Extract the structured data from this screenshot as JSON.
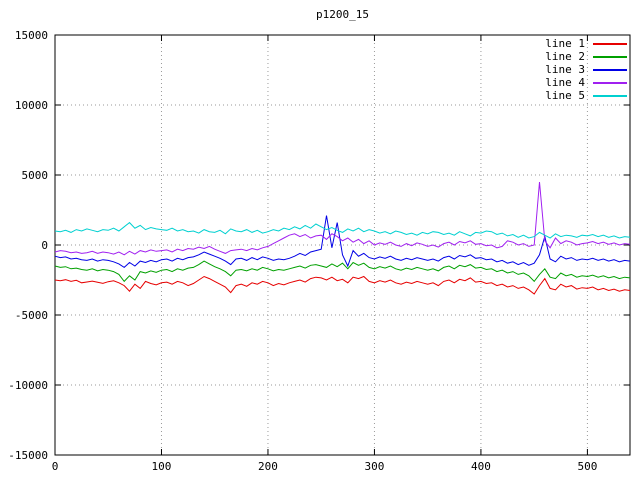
{
  "chart_data": {
    "type": "line",
    "title": "p1200_15",
    "xlabel": "",
    "ylabel": "",
    "grid": true,
    "legend_position": "top-right",
    "xlim": [
      0,
      540
    ],
    "ylim": [
      -15000,
      15000
    ],
    "xticks": [
      {
        "v": 0,
        "label": "0"
      },
      {
        "v": 100,
        "label": "100"
      },
      {
        "v": 200,
        "label": "200"
      },
      {
        "v": 300,
        "label": "300"
      },
      {
        "v": 400,
        "label": "400"
      },
      {
        "v": 500,
        "label": "500"
      }
    ],
    "yticks": [
      {
        "v": -15000,
        "label": "-15000"
      },
      {
        "v": -10000,
        "label": "-10000"
      },
      {
        "v": -5000,
        "label": "-5000"
      },
      {
        "v": 0,
        "label": "0"
      },
      {
        "v": 5000,
        "label": "5000"
      },
      {
        "v": 10000,
        "label": "10000"
      },
      {
        "v": 15000,
        "label": "15000"
      }
    ],
    "x": {
      "start": 0,
      "step": 5,
      "count": 109
    },
    "series": [
      {
        "name": "line 1",
        "color": "#e60000",
        "values": [
          -2500,
          -2550,
          -2480,
          -2600,
          -2520,
          -2700,
          -2640,
          -2580,
          -2660,
          -2740,
          -2620,
          -2560,
          -2700,
          -2900,
          -3300,
          -2800,
          -3100,
          -2600,
          -2750,
          -2850,
          -2700,
          -2650,
          -2800,
          -2600,
          -2700,
          -2900,
          -2750,
          -2500,
          -2250,
          -2400,
          -2600,
          -2800,
          -3000,
          -3400,
          -2900,
          -2800,
          -2950,
          -2700,
          -2800,
          -2600,
          -2700,
          -2900,
          -2750,
          -2850,
          -2700,
          -2600,
          -2500,
          -2650,
          -2400,
          -2300,
          -2350,
          -2500,
          -2300,
          -2550,
          -2450,
          -2700,
          -2300,
          -2400,
          -2250,
          -2600,
          -2700,
          -2550,
          -2650,
          -2500,
          -2700,
          -2800,
          -2650,
          -2750,
          -2600,
          -2700,
          -2800,
          -2700,
          -2900,
          -2600,
          -2500,
          -2700,
          -2450,
          -2550,
          -2350,
          -2650,
          -2600,
          -2750,
          -2700,
          -2900,
          -2800,
          -3000,
          -2900,
          -3100,
          -3000,
          -3200,
          -3500,
          -2900,
          -2400,
          -3100,
          -3200,
          -2800,
          -3000,
          -2900,
          -3150,
          -3050,
          -3100,
          -3000,
          -3200,
          -3100,
          -3250,
          -3150,
          -3300,
          -3200,
          -3250
        ]
      },
      {
        "name": "line 2",
        "color": "#00a000",
        "values": [
          -1500,
          -1600,
          -1550,
          -1700,
          -1650,
          -1750,
          -1800,
          -1700,
          -1850,
          -1750,
          -1800,
          -1900,
          -2100,
          -2600,
          -2200,
          -2500,
          -1900,
          -2000,
          -1850,
          -1950,
          -1800,
          -1750,
          -1900,
          -1700,
          -1800,
          -1650,
          -1600,
          -1400,
          -1150,
          -1350,
          -1550,
          -1700,
          -1900,
          -2200,
          -1800,
          -1750,
          -1850,
          -1700,
          -1800,
          -1600,
          -1700,
          -1850,
          -1750,
          -1800,
          -1700,
          -1600,
          -1500,
          -1650,
          -1450,
          -1400,
          -1500,
          -1600,
          -1350,
          -1550,
          -1300,
          -1700,
          -1250,
          -1450,
          -1300,
          -1600,
          -1700,
          -1550,
          -1650,
          -1500,
          -1700,
          -1800,
          -1650,
          -1750,
          -1600,
          -1700,
          -1800,
          -1700,
          -1850,
          -1600,
          -1500,
          -1700,
          -1450,
          -1550,
          -1400,
          -1650,
          -1600,
          -1750,
          -1700,
          -1900,
          -1800,
          -2000,
          -1900,
          -2100,
          -2000,
          -2200,
          -2600,
          -2100,
          -1700,
          -2300,
          -2400,
          -2000,
          -2200,
          -2100,
          -2300,
          -2200,
          -2250,
          -2150,
          -2300,
          -2200,
          -2350,
          -2250,
          -2400,
          -2300,
          -2350
        ]
      },
      {
        "name": "line 3",
        "color": "#0000e6",
        "values": [
          -800,
          -900,
          -850,
          -1000,
          -950,
          -1050,
          -1100,
          -1000,
          -1150,
          -1050,
          -1100,
          -1200,
          -1350,
          -1600,
          -1250,
          -1500,
          -1150,
          -1250,
          -1100,
          -1200,
          -1050,
          -1000,
          -1150,
          -950,
          -1050,
          -900,
          -850,
          -700,
          -500,
          -650,
          -800,
          -950,
          -1150,
          -1400,
          -1000,
          -950,
          -1100,
          -900,
          -1050,
          -850,
          -950,
          -1100,
          -1000,
          -1050,
          -950,
          -800,
          -600,
          -750,
          -500,
          -400,
          -300,
          2100,
          -200,
          1600,
          -700,
          -1500,
          -400,
          -800,
          -600,
          -900,
          -1000,
          -850,
          -950,
          -800,
          -1000,
          -1100,
          -950,
          -1050,
          -900,
          -1000,
          -1100,
          -1000,
          -1150,
          -900,
          -800,
          -1000,
          -750,
          -850,
          -700,
          -950,
          -900,
          -1050,
          -1000,
          -1200,
          -1100,
          -1300,
          -1200,
          -1400,
          -1250,
          -1450,
          -1300,
          -700,
          600,
          -1000,
          -1200,
          -800,
          -1000,
          -900,
          -1100,
          -1000,
          -1050,
          -950,
          -1100,
          -1000,
          -1150,
          -1050,
          -1200,
          -1100,
          -1150
        ]
      },
      {
        "name": "line 4",
        "color": "#a020f0",
        "values": [
          -500,
          -400,
          -450,
          -550,
          -500,
          -600,
          -550,
          -450,
          -600,
          -500,
          -550,
          -650,
          -500,
          -700,
          -450,
          -650,
          -400,
          -500,
          -350,
          -450,
          -400,
          -350,
          -500,
          -300,
          -400,
          -250,
          -300,
          -150,
          -250,
          -100,
          -300,
          -450,
          -600,
          -400,
          -350,
          -300,
          -400,
          -250,
          -350,
          -200,
          -100,
          100,
          300,
          500,
          700,
          800,
          600,
          750,
          500,
          650,
          700,
          400,
          800,
          600,
          300,
          500,
          200,
          400,
          100,
          300,
          0,
          150,
          50,
          200,
          0,
          -100,
          100,
          -50,
          150,
          50,
          -100,
          0,
          -150,
          100,
          200,
          0,
          250,
          150,
          300,
          50,
          100,
          -50,
          0,
          -200,
          -100,
          300,
          200,
          0,
          100,
          -100,
          0,
          4500,
          300,
          -200,
          500,
          100,
          300,
          200,
          0,
          100,
          150,
          250,
          100,
          200,
          50,
          150,
          0,
          100,
          50
        ]
      },
      {
        "name": "line 5",
        "color": "#00d0d0",
        "values": [
          1000,
          950,
          1050,
          900,
          1100,
          1000,
          1150,
          1050,
          950,
          1100,
          1050,
          1200,
          1000,
          1300,
          1600,
          1200,
          1400,
          1100,
          1250,
          1150,
          1100,
          1050,
          1200,
          1000,
          1100,
          950,
          1000,
          850,
          1100,
          950,
          900,
          1050,
          800,
          1150,
          1000,
          950,
          1100,
          900,
          1050,
          850,
          950,
          1100,
          1000,
          1200,
          1100,
          1300,
          1150,
          1400,
          1200,
          1500,
          1300,
          1100,
          1250,
          1050,
          900,
          1150,
          1000,
          1200,
          950,
          1100,
          1000,
          850,
          950,
          800,
          1000,
          900,
          750,
          850,
          700,
          900,
          800,
          950,
          900,
          750,
          850,
          700,
          950,
          800,
          650,
          900,
          850,
          1000,
          950,
          750,
          850,
          650,
          750,
          550,
          700,
          500,
          600,
          900,
          700,
          500,
          800,
          600,
          700,
          650,
          550,
          700,
          650,
          750,
          600,
          700,
          550,
          650,
          500,
          600,
          550
        ]
      }
    ]
  },
  "legend": {
    "items": [
      {
        "label": "line 1"
      },
      {
        "label": "line 2"
      },
      {
        "label": "line 3"
      },
      {
        "label": "line 4"
      },
      {
        "label": "line 5"
      }
    ]
  }
}
